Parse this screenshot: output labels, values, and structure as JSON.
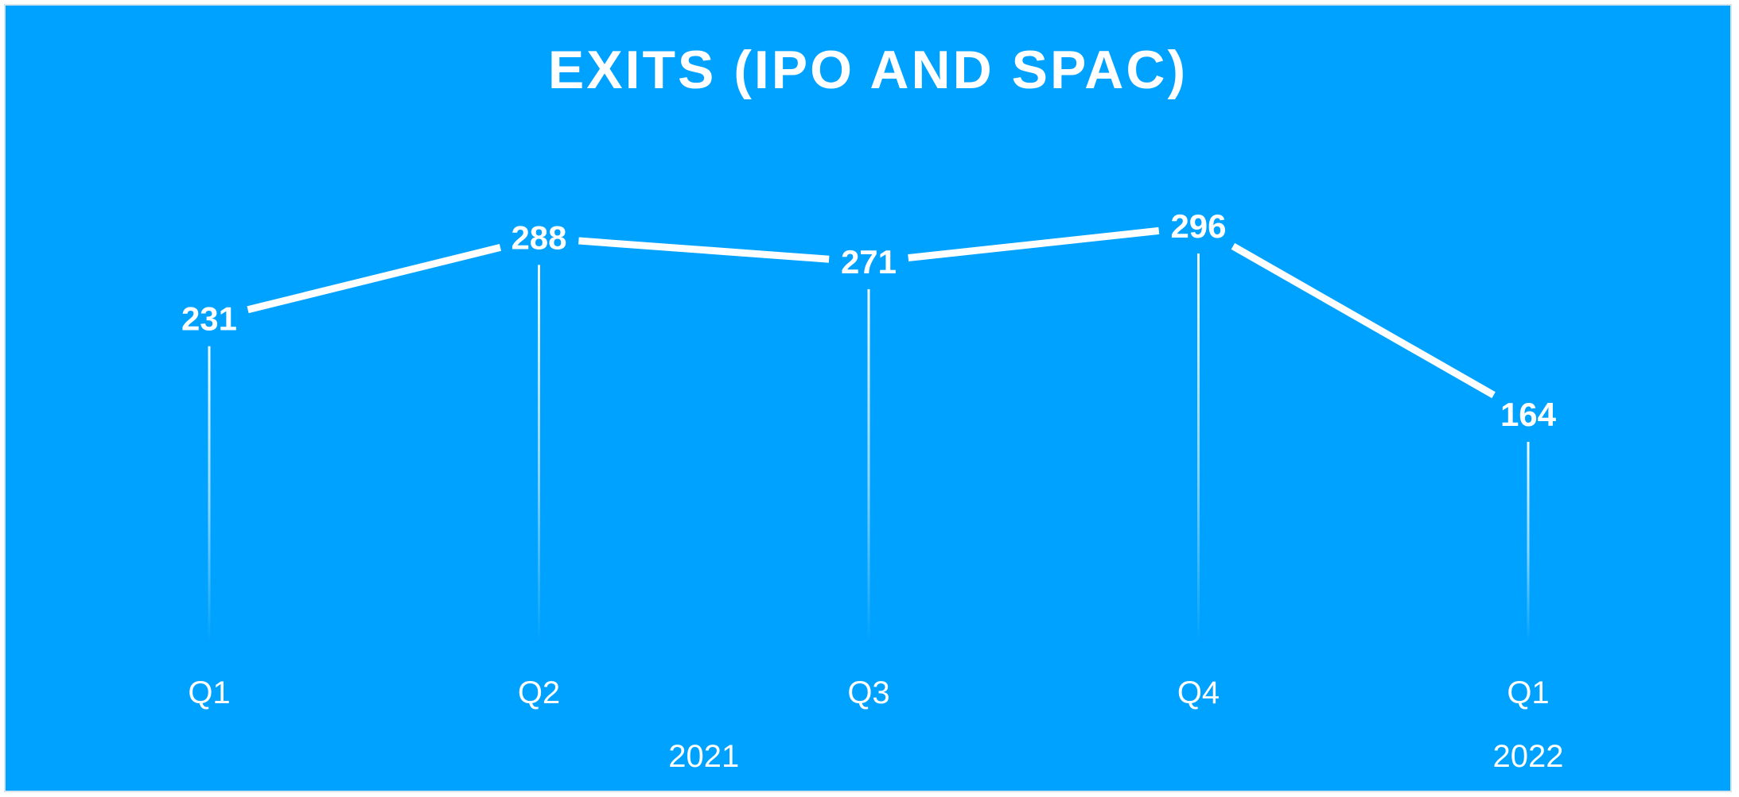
{
  "chart_data": {
    "type": "line",
    "title": "EXITS (IPO AND SPAC)",
    "categories": [
      "Q1",
      "Q2",
      "Q3",
      "Q4",
      "Q1"
    ],
    "category_groups": [
      {
        "label": "2021",
        "categories": [
          0,
          1,
          2,
          3
        ]
      },
      {
        "label": "2022",
        "categories": [
          4
        ]
      }
    ],
    "series": [
      {
        "values": [
          231,
          288,
          271,
          296,
          164
        ]
      }
    ],
    "data_labels": [
      "231",
      "288",
      "271",
      "296",
      "164"
    ],
    "xlabel": "",
    "ylabel": "",
    "grid": false,
    "legend": "none",
    "colors": {
      "background": "#00a2ff",
      "line": "#ffffff",
      "text": "#ffffff"
    }
  }
}
